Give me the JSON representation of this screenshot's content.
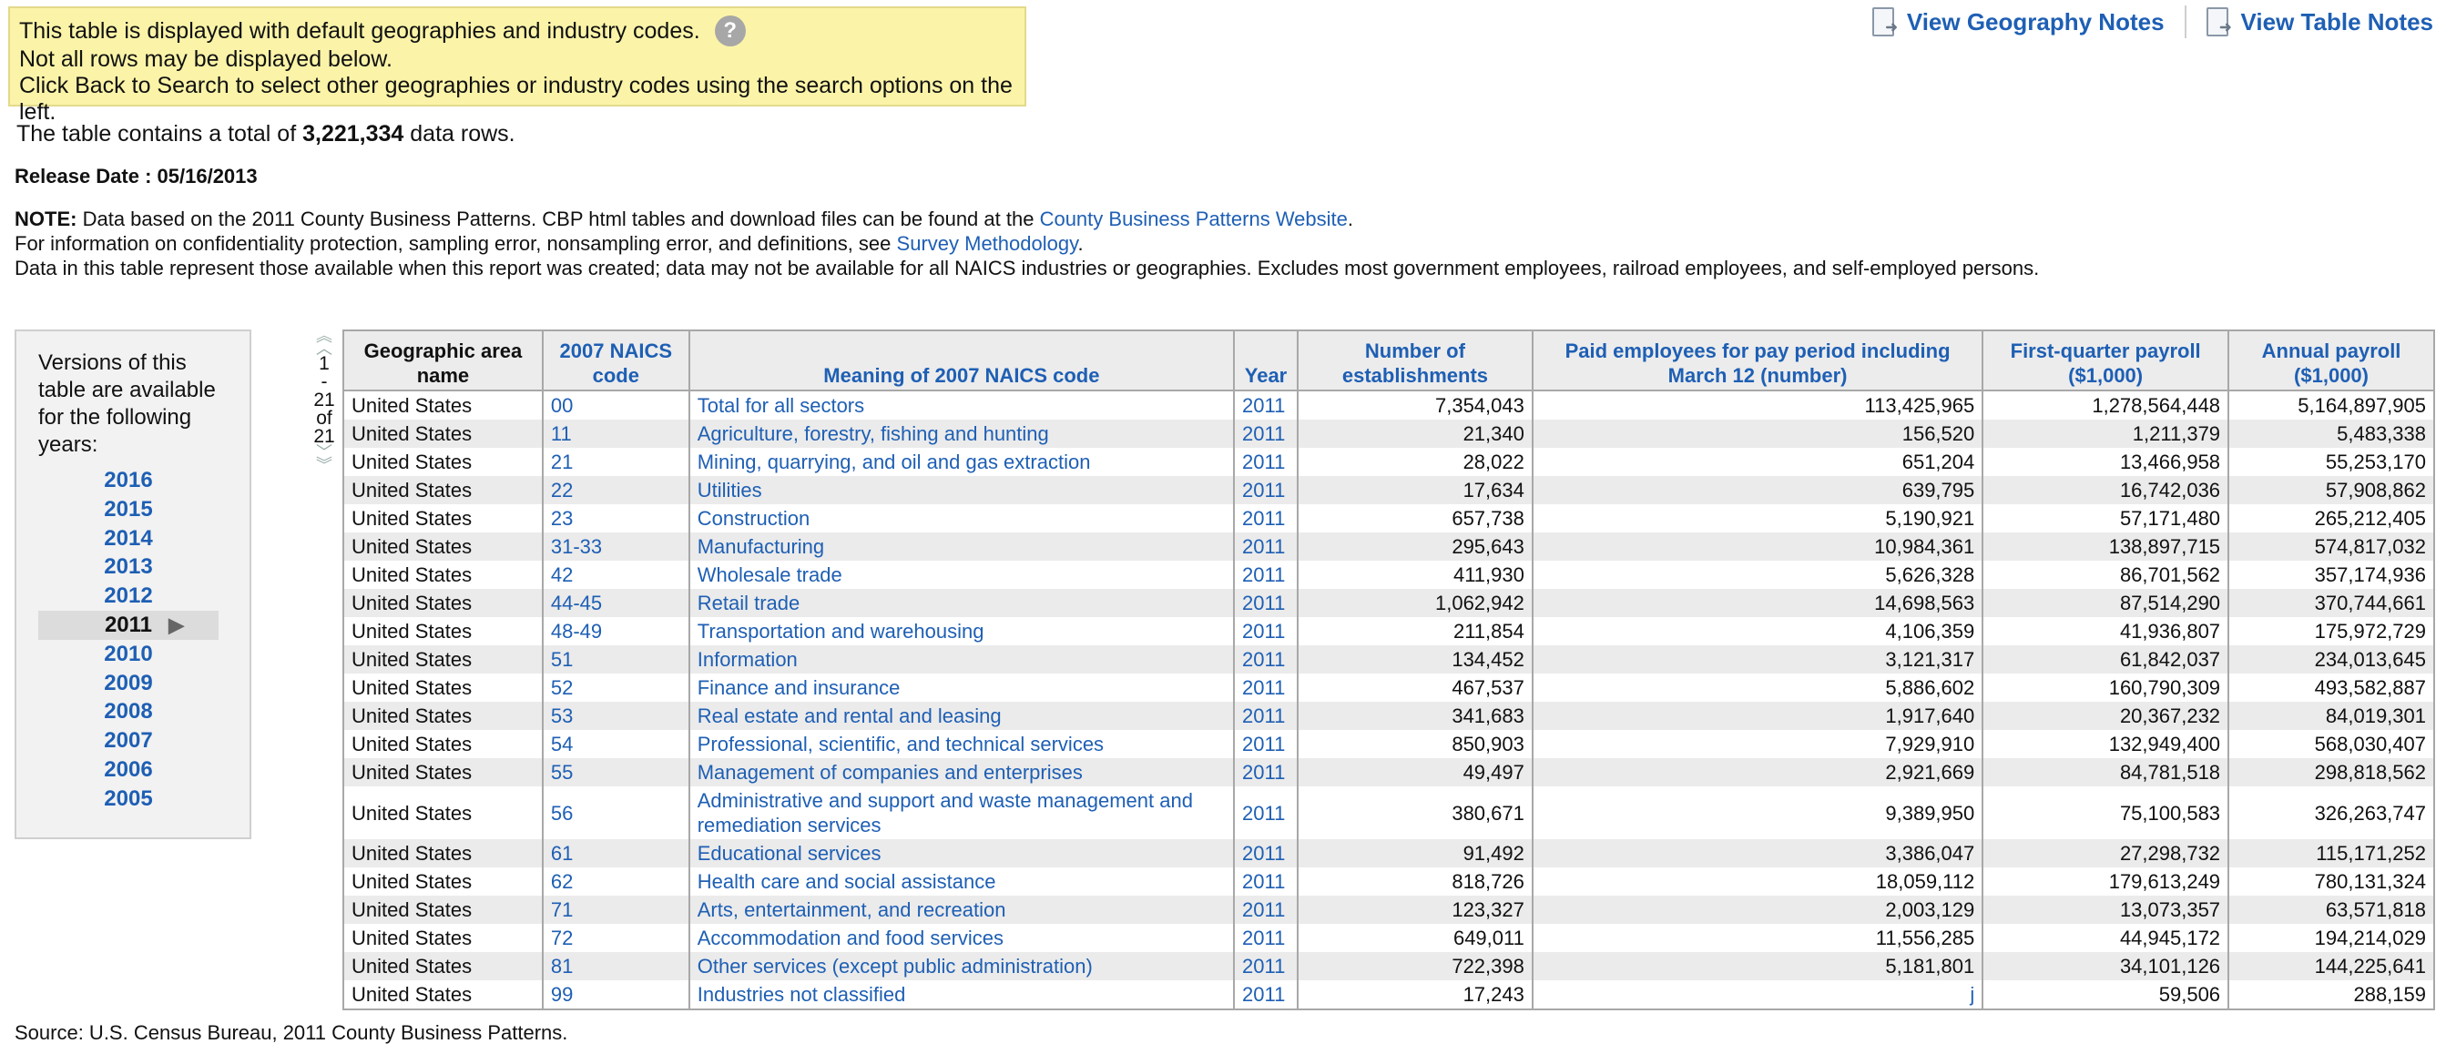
{
  "notice": {
    "line1": "This table is displayed with default geographies and industry codes.",
    "help_icon": "?",
    "line2": "Not all rows may be displayed below.",
    "line3": "Click Back to Search to select other geographies or industry codes using the search options on the left."
  },
  "top_links": {
    "geography_notes": "View Geography Notes",
    "table_notes": "View Table Notes"
  },
  "summary": {
    "prefix": "The table contains a total of",
    "count": "3,221,334",
    "suffix": "data rows."
  },
  "release": "Release Date : 05/16/2013",
  "notes": {
    "note_label": "NOTE:",
    "note_text": "Data based on the 2011 County Business Patterns. CBP html tables and download files can be found at the",
    "note_link": "County Business Patterns Website",
    "line2_text": "For information on confidentiality protection, sampling error, nonsampling error, and definitions, see",
    "line2_link": "Survey Methodology",
    "line3": "Data in this table represent those available when this report was created; data may not be available for all NAICS industries or geographies. Excludes most government employees, railroad employees, and self-employed persons."
  },
  "versions": {
    "title": "Versions of this table are available for the following years:",
    "years": [
      "2016",
      "2015",
      "2014",
      "2013",
      "2012",
      "2011",
      "2010",
      "2009",
      "2008",
      "2007",
      "2006",
      "2005"
    ],
    "selected": "2011"
  },
  "pager": {
    "start": "1",
    "dash": "-",
    "end": "21",
    "of": "of",
    "total": "21"
  },
  "table": {
    "headers": [
      "Geographic area name",
      "2007 NAICS code",
      "Meaning of 2007 NAICS code",
      "Year",
      "Number of establishments",
      "Paid employees for pay period including March 12 (number)",
      "First-quarter payroll ($1,000)",
      "Annual payroll ($1,000)"
    ],
    "rows": [
      [
        "United States",
        "00",
        "Total for all sectors",
        "2011",
        "7,354,043",
        "113,425,965",
        "1,278,564,448",
        "5,164,897,905"
      ],
      [
        "United States",
        "11",
        "Agriculture, forestry, fishing and hunting",
        "2011",
        "21,340",
        "156,520",
        "1,211,379",
        "5,483,338"
      ],
      [
        "United States",
        "21",
        "Mining, quarrying, and oil and gas extraction",
        "2011",
        "28,022",
        "651,204",
        "13,466,958",
        "55,253,170"
      ],
      [
        "United States",
        "22",
        "Utilities",
        "2011",
        "17,634",
        "639,795",
        "16,742,036",
        "57,908,862"
      ],
      [
        "United States",
        "23",
        "Construction",
        "2011",
        "657,738",
        "5,190,921",
        "57,171,480",
        "265,212,405"
      ],
      [
        "United States",
        "31-33",
        "Manufacturing",
        "2011",
        "295,643",
        "10,984,361",
        "138,897,715",
        "574,817,032"
      ],
      [
        "United States",
        "42",
        "Wholesale trade",
        "2011",
        "411,930",
        "5,626,328",
        "86,701,562",
        "357,174,936"
      ],
      [
        "United States",
        "44-45",
        "Retail trade",
        "2011",
        "1,062,942",
        "14,698,563",
        "87,514,290",
        "370,744,661"
      ],
      [
        "United States",
        "48-49",
        "Transportation and warehousing",
        "2011",
        "211,854",
        "4,106,359",
        "41,936,807",
        "175,972,729"
      ],
      [
        "United States",
        "51",
        "Information",
        "2011",
        "134,452",
        "3,121,317",
        "61,842,037",
        "234,013,645"
      ],
      [
        "United States",
        "52",
        "Finance and insurance",
        "2011",
        "467,537",
        "5,886,602",
        "160,790,309",
        "493,582,887"
      ],
      [
        "United States",
        "53",
        "Real estate and rental and leasing",
        "2011",
        "341,683",
        "1,917,640",
        "20,367,232",
        "84,019,301"
      ],
      [
        "United States",
        "54",
        "Professional, scientific, and technical services",
        "2011",
        "850,903",
        "7,929,910",
        "132,949,400",
        "568,030,407"
      ],
      [
        "United States",
        "55",
        "Management of companies and enterprises",
        "2011",
        "49,497",
        "2,921,669",
        "84,781,518",
        "298,818,562"
      ],
      [
        "United States",
        "56",
        "Administrative and support and waste management and remediation services",
        "2011",
        "380,671",
        "9,389,950",
        "75,100,583",
        "326,263,747"
      ],
      [
        "United States",
        "61",
        "Educational services",
        "2011",
        "91,492",
        "3,386,047",
        "27,298,732",
        "115,171,252"
      ],
      [
        "United States",
        "62",
        "Health care and social assistance",
        "2011",
        "818,726",
        "18,059,112",
        "179,613,249",
        "780,131,324"
      ],
      [
        "United States",
        "71",
        "Arts, entertainment, and recreation",
        "2011",
        "123,327",
        "2,003,129",
        "13,073,357",
        "63,571,818"
      ],
      [
        "United States",
        "72",
        "Accommodation and food services",
        "2011",
        "649,011",
        "11,556,285",
        "44,945,172",
        "194,214,029"
      ],
      [
        "United States",
        "81",
        "Other services (except public administration)",
        "2011",
        "722,398",
        "5,181,801",
        "34,101,126",
        "144,225,641"
      ],
      [
        "United States",
        "99",
        "Industries not classified",
        "2011",
        "17,243",
        "j",
        "59,506",
        "288,159"
      ]
    ]
  },
  "source": "Source: U.S. Census Bureau, 2011 County Business Patterns."
}
